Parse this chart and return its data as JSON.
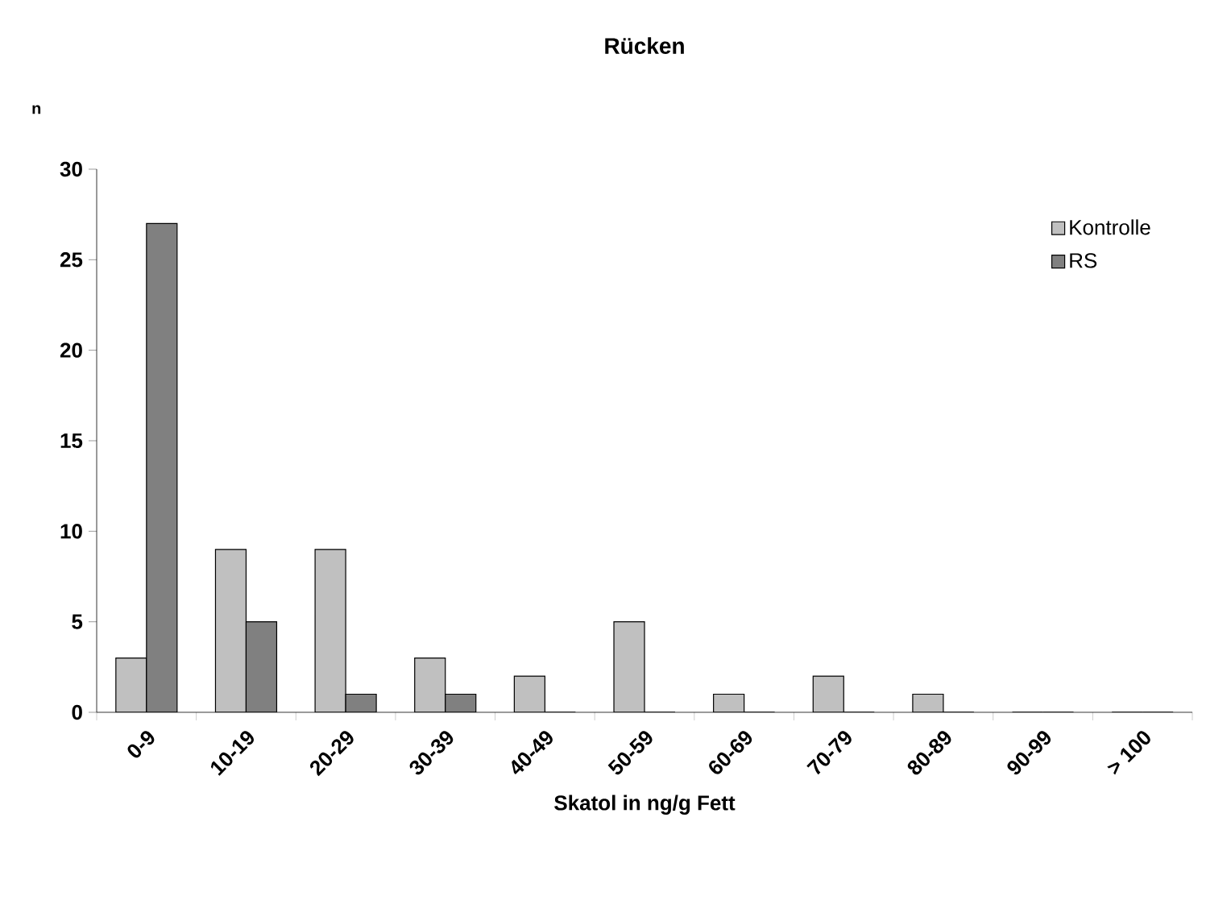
{
  "chart_data": {
    "type": "bar",
    "title": "Rücken",
    "xlabel": "Skatol in ng/g Fett",
    "ylabel": "n",
    "categories": [
      "0-9",
      "10-19",
      "20-29",
      "30-39",
      "40-49",
      "50-59",
      "60-69",
      "70-79",
      "80-89",
      "90-99",
      "> 100"
    ],
    "series": [
      {
        "name": "Kontrolle",
        "color": "#c0c0c0",
        "values": [
          3,
          9,
          9,
          3,
          2,
          5,
          1,
          2,
          1,
          0,
          0
        ]
      },
      {
        "name": "RS",
        "color": "#808080",
        "values": [
          27,
          5,
          1,
          1,
          0,
          0,
          0,
          0,
          0,
          0,
          0
        ]
      }
    ],
    "ylim": [
      0,
      30
    ],
    "yticks": [
      0,
      5,
      10,
      15,
      20,
      25,
      30
    ],
    "grid": false,
    "legend": "top right"
  }
}
